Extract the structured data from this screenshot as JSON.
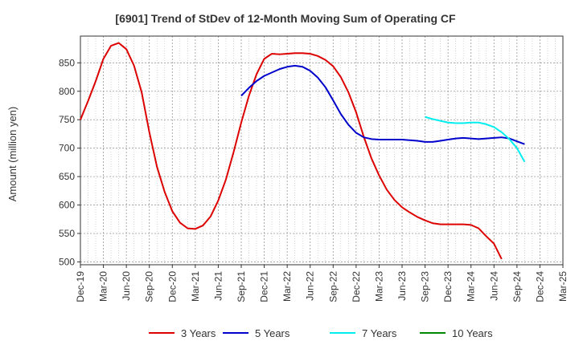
{
  "chart_data": {
    "type": "line",
    "title": "[6901]  Trend of StDev of 12-Month Moving Sum of Operating CF",
    "xlabel": "",
    "ylabel": "Amount (million yen)",
    "ylim": [
      495,
      897
    ],
    "yticks": [
      500,
      550,
      600,
      650,
      700,
      750,
      800,
      850
    ],
    "x_start": "2019-12",
    "x_end": "2025-03",
    "x_tick_labels": [
      "Dec-19",
      "Mar-20",
      "Jun-20",
      "Sep-20",
      "Dec-20",
      "Mar-21",
      "Jun-21",
      "Sep-21",
      "Dec-21",
      "Mar-22",
      "Jun-22",
      "Sep-22",
      "Dec-22",
      "Mar-23",
      "Jun-23",
      "Sep-23",
      "Dec-23",
      "Mar-24",
      "Jun-24",
      "Sep-24",
      "Dec-24",
      "Mar-25"
    ],
    "grid": true,
    "legend_position": "bottom",
    "series": [
      {
        "name": "3 Years",
        "color": "#dd0000",
        "start": "2019-12",
        "values": [
          750,
          783,
          818,
          857,
          880,
          885,
          874,
          845,
          798,
          728,
          667,
          623,
          589,
          569,
          559,
          558,
          564,
          580,
          608,
          645,
          693,
          745,
          792,
          830,
          857,
          866,
          865,
          866,
          867,
          867,
          866,
          862,
          855,
          844,
          825,
          798,
          763,
          720,
          682,
          652,
          627,
          609,
          596,
          587,
          579,
          573,
          568,
          566,
          566,
          566,
          566,
          565,
          559,
          545,
          532,
          505
        ]
      },
      {
        "name": "5 Years",
        "color": "#0000cc",
        "start": "2021-09",
        "values": [
          792,
          806,
          818,
          827,
          833,
          839,
          843,
          845,
          843,
          836,
          824,
          807,
          784,
          760,
          741,
          727,
          719,
          716,
          715,
          715,
          715,
          715,
          714,
          713,
          711,
          711,
          713,
          715,
          717,
          718,
          717,
          716,
          717,
          718,
          719,
          717,
          712,
          707
        ]
      },
      {
        "name": "7 Years",
        "color": "#00eeee",
        "start": "2023-09",
        "values": [
          755,
          751,
          748,
          745,
          744,
          744,
          745,
          745,
          742,
          737,
          728,
          716,
          700,
          676
        ]
      },
      {
        "name": "10 Years",
        "color": "#008800",
        "start": "2023-09",
        "values": []
      }
    ]
  }
}
